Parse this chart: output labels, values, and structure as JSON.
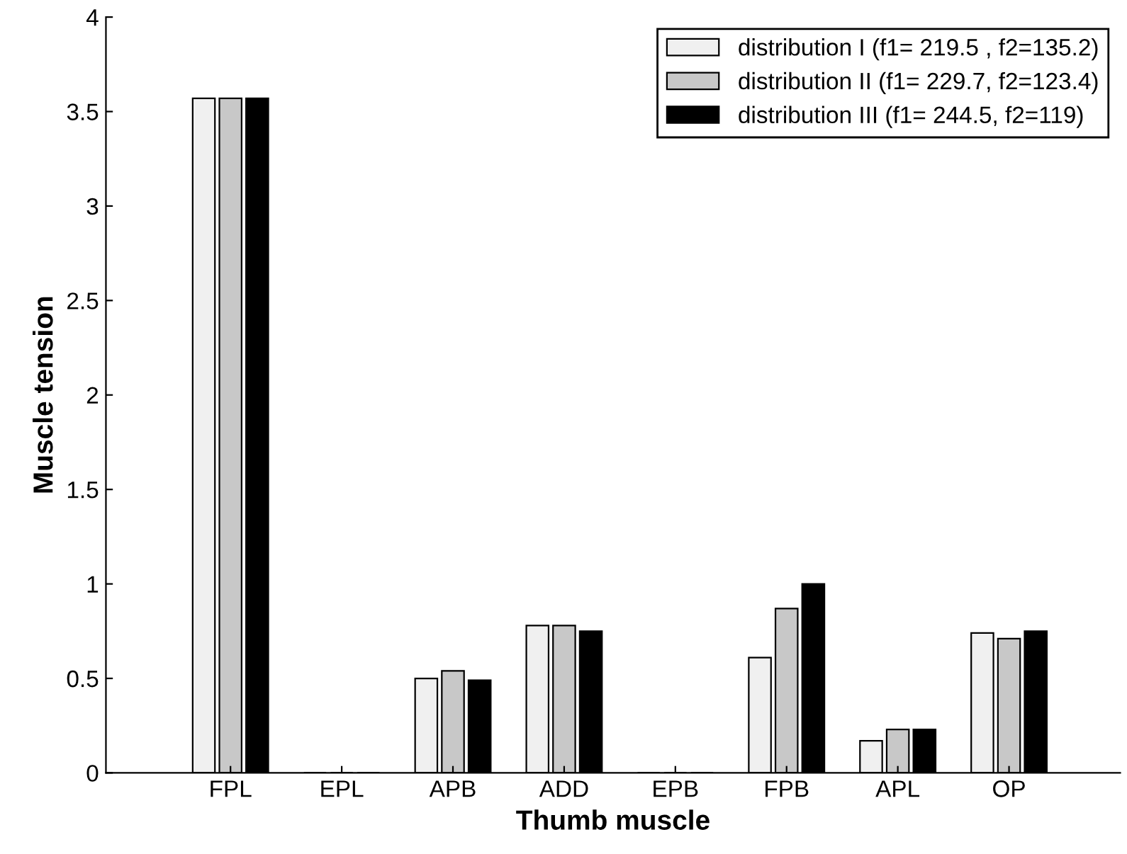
{
  "chart_data": {
    "type": "bar",
    "xlabel": "Thumb muscle",
    "ylabel": "Muscle tension",
    "categories": [
      "FPL",
      "EPL",
      "APB",
      "ADD",
      "EPB",
      "FPB",
      "APL",
      "OP"
    ],
    "series": [
      {
        "name": "distribution I (f1= 219.5 , f2=135.2)",
        "color": "#f0f0f0",
        "values": [
          3.57,
          0,
          0.5,
          0.78,
          0,
          0.61,
          0.17,
          0.74
        ]
      },
      {
        "name": "distribution II (f1= 229.7, f2=123.4)",
        "color": "#c8c8c8",
        "values": [
          3.57,
          0,
          0.54,
          0.78,
          0,
          0.87,
          0.23,
          0.71
        ]
      },
      {
        "name": "distribution III (f1= 244.5, f2=119)",
        "color": "#000000",
        "values": [
          3.57,
          0,
          0.49,
          0.75,
          0,
          1.0,
          0.23,
          0.75
        ]
      }
    ],
    "ylim": [
      0,
      4
    ],
    "yticks": [
      0,
      0.5,
      1,
      1.5,
      2,
      2.5,
      3,
      3.5,
      4
    ],
    "grid": false,
    "legend": "top right"
  }
}
